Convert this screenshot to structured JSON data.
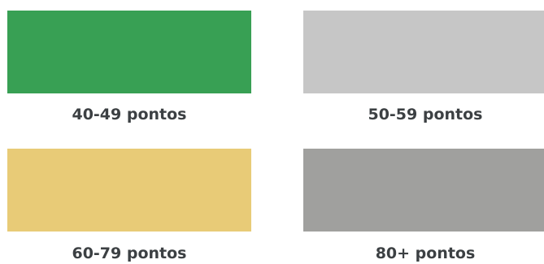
{
  "legend": {
    "items": [
      {
        "label": "40-49 pontos",
        "color": "#38a054"
      },
      {
        "label": "50-59 pontos",
        "color": "#c6c6c6"
      },
      {
        "label": "60-79 pontos",
        "color": "#e8cb77"
      },
      {
        "label": "80+ pontos",
        "color": "#a0a09e"
      }
    ]
  }
}
